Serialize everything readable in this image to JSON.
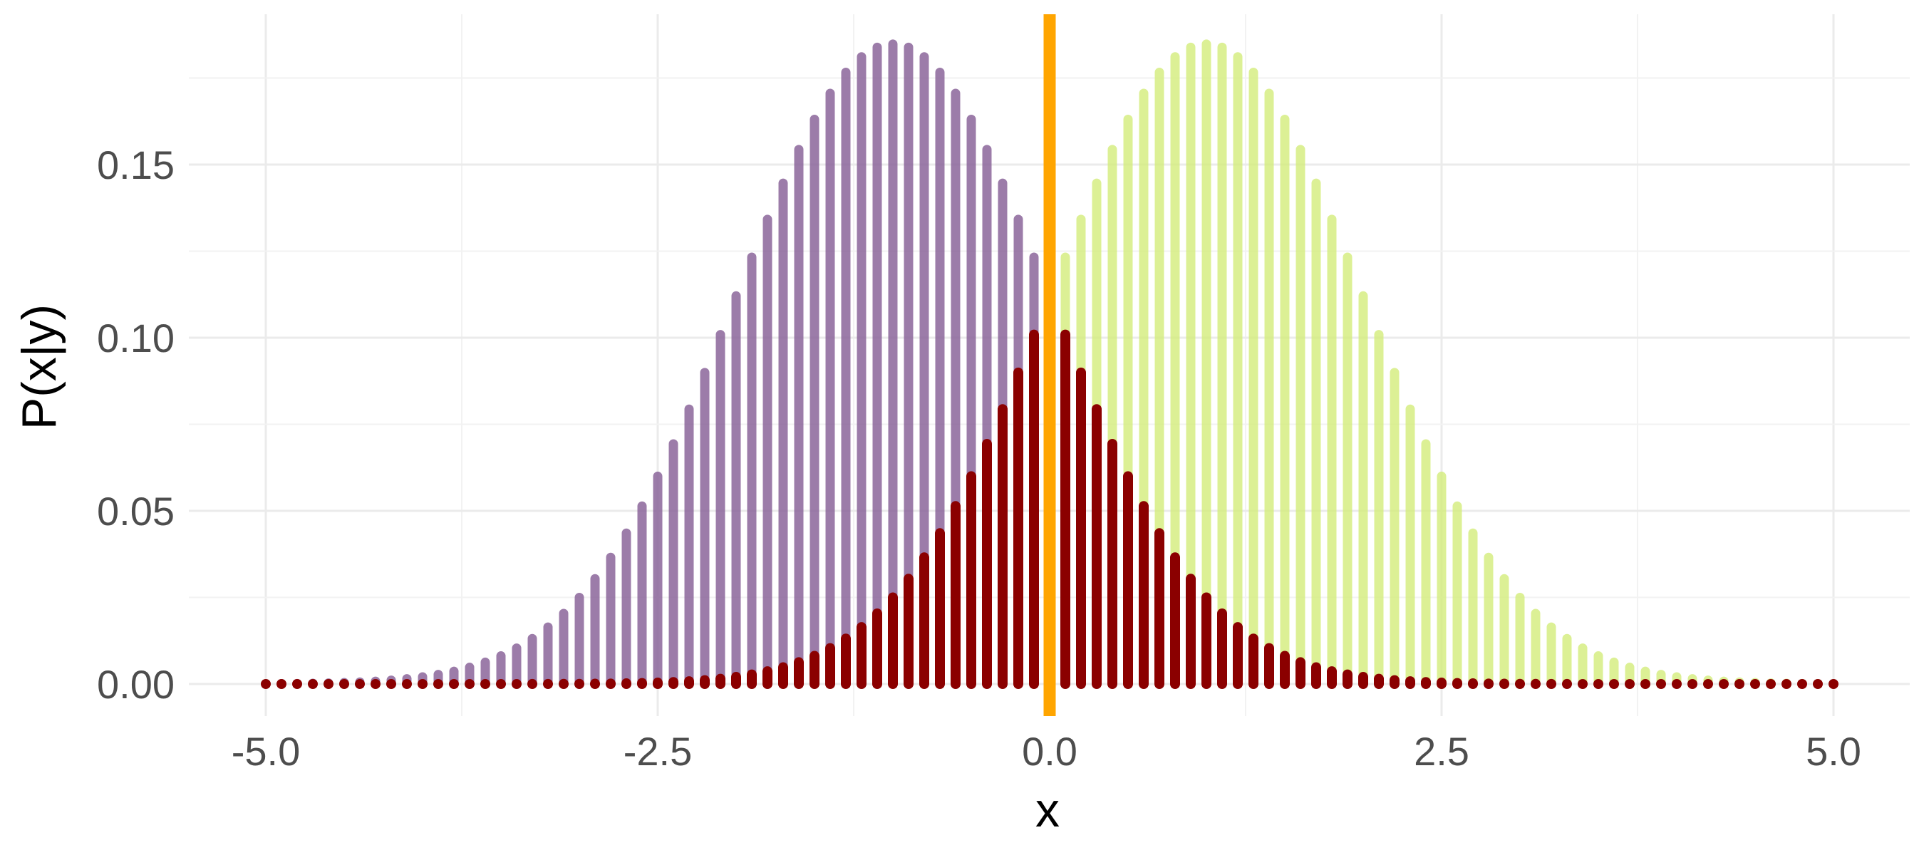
{
  "chart_data": {
    "type": "bar",
    "xlabel": "x",
    "ylabel": "P(x|y)",
    "xlim": [
      -5,
      5
    ],
    "ylim": [
      -0.005,
      0.19
    ],
    "x_ticks": [
      -5.0,
      -2.5,
      0.0,
      2.5,
      5.0
    ],
    "x_tick_labels": [
      "-5.0",
      "-2.5",
      "0.0",
      "2.5",
      "5.0"
    ],
    "y_ticks": [
      0.0,
      0.05,
      0.1,
      0.15
    ],
    "y_tick_labels": [
      "0.00",
      "0.05",
      "0.10",
      "0.15"
    ],
    "grid": true,
    "legend": "none",
    "x_step": 0.1,
    "series": [
      {
        "distribution": "normal",
        "mean": -1.0,
        "sd": 1.0,
        "scale": 0.4632,
        "color": "#8b659a",
        "opacity": 0.85
      },
      {
        "distribution": "normal",
        "mean": 1.0,
        "sd": 1.0,
        "scale": 0.4632,
        "color": "#d3ec7a",
        "opacity": 0.8
      },
      {
        "distribution": "product",
        "formula": "min of the two class curves",
        "color": "#8b0000",
        "opacity": 1.0
      }
    ],
    "annotations": [
      {
        "type": "vline",
        "x": 0.0,
        "color": "#ffa500"
      }
    ]
  }
}
